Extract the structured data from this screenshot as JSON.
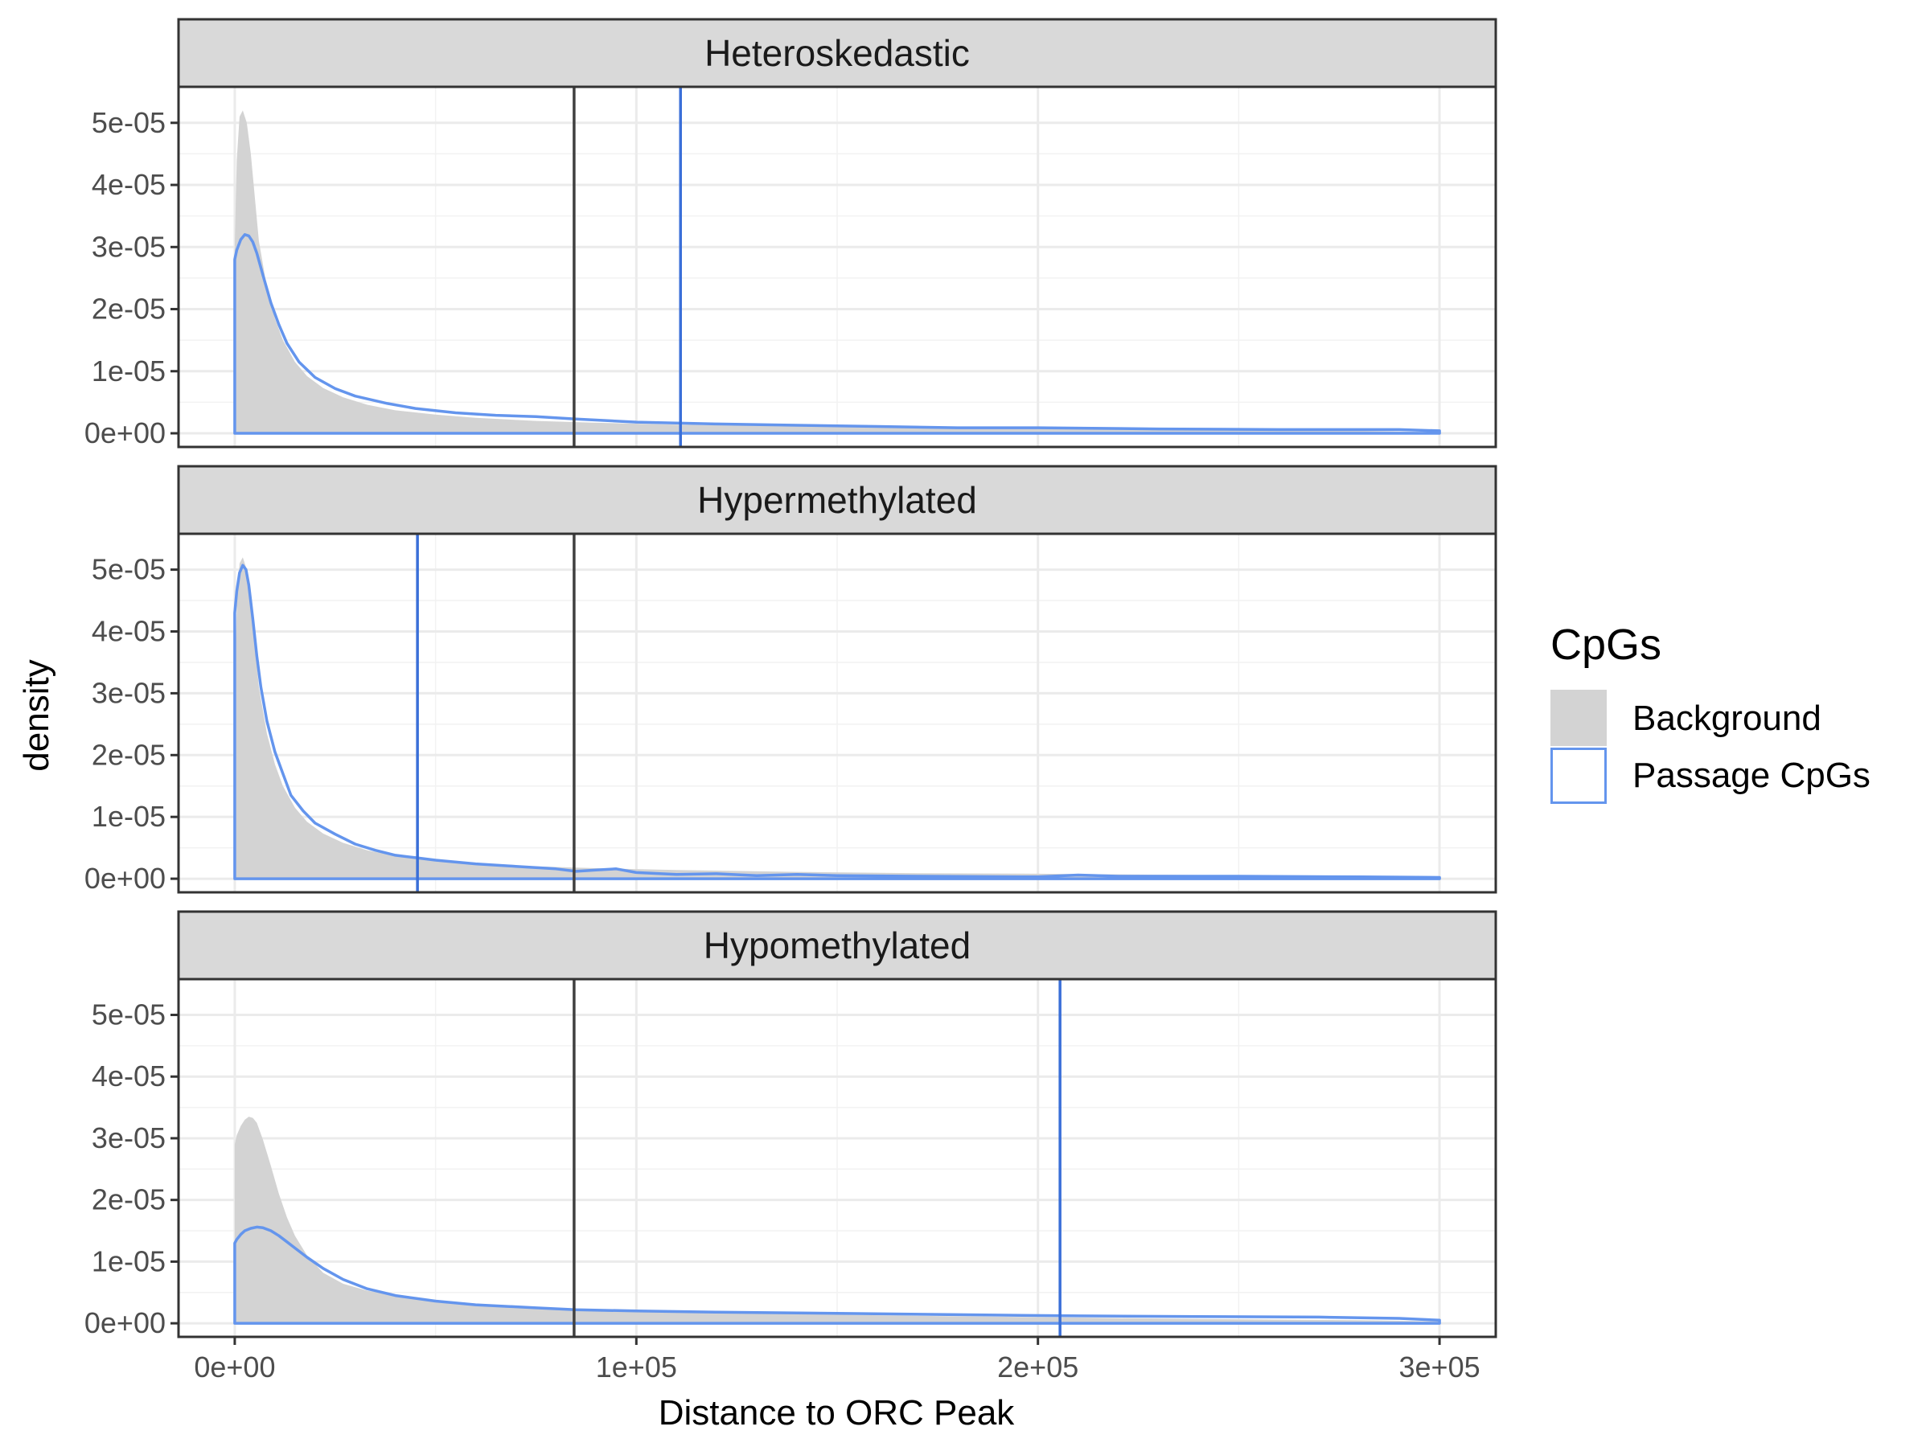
{
  "chart_data": {
    "type": "area",
    "xlabel": "Distance to ORC Peak",
    "ylabel": "density",
    "xlim": [
      -14000,
      314000
    ],
    "ylim": [
      -2.2e-06,
      5.58e-05
    ],
    "x_ticks": [
      0,
      100000,
      200000,
      300000
    ],
    "x_tick_labels": [
      "0e+00",
      "1e+05",
      "2e+05",
      "3e+05"
    ],
    "y_ticks": [
      0,
      1e-05,
      2e-05,
      3e-05,
      4e-05,
      5e-05
    ],
    "y_tick_labels": [
      "0e+00",
      "1e-05",
      "2e-05",
      "3e-05",
      "4e-05",
      "5e-05"
    ],
    "grid": true,
    "legend": {
      "title": "CpGs",
      "position": "right",
      "entries": [
        {
          "label": "Background",
          "kind": "fill",
          "color": "#d3d3d3"
        },
        {
          "label": "Passage CpGs",
          "kind": "line",
          "color": "#6495ed"
        }
      ]
    },
    "colors": {
      "background_fill": "#d3d3d3",
      "passage_line": "#6495ed",
      "passage_vline": "#3a6fd8",
      "background_vline": "#404040",
      "strip_fill": "#d9d9d9"
    },
    "panels": [
      {
        "label": "Heteroskedastic",
        "background_median": 84500,
        "passage_median": 111000,
        "series": [
          {
            "name": "Background",
            "kind": "fill",
            "x": [
              0,
              500,
              1200,
              2000,
              3000,
              4000,
              5000,
              6000,
              8000,
              10000,
              12000,
              15000,
              18000,
              22000,
              27000,
              33000,
              40000,
              50000,
              60000,
              75000,
              90000,
              110000,
              140000,
              170000,
              200000,
              240000,
              280000,
              300000
            ],
            "y": [
              3e-05,
              4.4e-05,
              5.1e-05,
              5.2e-05,
              5e-05,
              4.5e-05,
              3.8e-05,
              3.1e-05,
              2.35e-05,
              1.85e-05,
              1.5e-05,
              1.15e-05,
              9.2e-06,
              7.3e-06,
              5.8e-06,
              4.6e-06,
              3.7e-06,
              3e-06,
              2.5e-06,
              2e-06,
              1.7e-06,
              1.4e-06,
              1.1e-06,
              9e-07,
              8e-07,
              6e-07,
              4e-07,
              2e-07
            ]
          },
          {
            "name": "Passage CpGs",
            "kind": "line",
            "x": [
              0,
              500,
              1500,
              2500,
              3500,
              4500,
              5500,
              7000,
              9000,
              11000,
              13000,
              16000,
              20000,
              25000,
              30000,
              38000,
              45000,
              55000,
              65000,
              75000,
              85000,
              100000,
              120000,
              140000,
              160000,
              180000,
              200000,
              230000,
              260000,
              290000,
              300000
            ],
            "y": [
              2.8e-05,
              2.95e-05,
              3.12e-05,
              3.2e-05,
              3.18e-05,
              3.08e-05,
              2.9e-05,
              2.55e-05,
              2.1e-05,
              1.75e-05,
              1.45e-05,
              1.15e-05,
              9e-06,
              7.2e-06,
              6e-06,
              4.8e-06,
              4e-06,
              3.3e-06,
              2.9e-06,
              2.7e-06,
              2.3e-06,
              1.8e-06,
              1.5e-06,
              1.3e-06,
              1.1e-06,
              9e-07,
              9e-07,
              7e-07,
              6e-07,
              6e-07,
              4e-07
            ]
          }
        ]
      },
      {
        "label": "Hypermethylated",
        "background_median": 84500,
        "passage_median": 45500,
        "series": [
          {
            "name": "Background",
            "kind": "fill",
            "x": [
              0,
              500,
              1200,
              2000,
              3000,
              4000,
              5000,
              6000,
              8000,
              10000,
              12000,
              15000,
              18000,
              22000,
              27000,
              33000,
              40000,
              50000,
              60000,
              75000,
              90000,
              110000,
              140000,
              170000,
              200000,
              240000,
              280000,
              300000
            ],
            "y": [
              3e-05,
              4.4e-05,
              5.1e-05,
              5.2e-05,
              5e-05,
              4.5e-05,
              3.8e-05,
              3.1e-05,
              2.35e-05,
              1.85e-05,
              1.5e-05,
              1.15e-05,
              9.2e-06,
              7.3e-06,
              5.8e-06,
              4.6e-06,
              3.7e-06,
              3e-06,
              2.5e-06,
              2e-06,
              1.7e-06,
              1.4e-06,
              1.1e-06,
              9e-07,
              8e-07,
              6e-07,
              4e-07,
              2e-07
            ]
          },
          {
            "name": "Passage CpGs",
            "kind": "line",
            "x": [
              0,
              500,
              1200,
              2000,
              2800,
              3500,
              4500,
              5500,
              6500,
              8000,
              10000,
              12000,
              14000,
              17000,
              20000,
              25000,
              30000,
              35000,
              40000,
              45000,
              50000,
              60000,
              70000,
              80000,
              85000,
              90000,
              95000,
              100000,
              110000,
              120000,
              130000,
              140000,
              150000,
              170000,
              200000,
              210000,
              220000,
              250000,
              280000,
              300000
            ],
            "y": [
              4.3e-05,
              4.65e-05,
              4.95e-05,
              5.07e-05,
              5e-05,
              4.75e-05,
              4.2e-05,
              3.6e-05,
              3.1e-05,
              2.55e-05,
              2.05e-05,
              1.7e-05,
              1.35e-05,
              1.1e-05,
              9e-06,
              7.2e-06,
              5.6e-06,
              4.6e-06,
              3.8e-06,
              3.4e-06,
              3e-06,
              2.4e-06,
              2e-06,
              1.6e-06,
              1.2e-06,
              1.4e-06,
              1.6e-06,
              1e-06,
              7e-07,
              8e-07,
              5e-07,
              7e-07,
              5e-07,
              4e-07,
              3e-07,
              6e-07,
              4e-07,
              4e-07,
              3e-07,
              2e-07
            ]
          }
        ]
      },
      {
        "label": "Hypomethylated",
        "background_median": 84500,
        "passage_median": 205500,
        "series": [
          {
            "name": "Background",
            "kind": "fill",
            "x": [
              0,
              500,
              1500,
              2500,
              3500,
              4500,
              5500,
              7000,
              9000,
              11000,
              13000,
              15000,
              18000,
              22000,
              27000,
              33000,
              40000,
              50000,
              60000,
              75000,
              90000,
              110000,
              140000,
              170000,
              200000,
              240000,
              280000,
              300000
            ],
            "y": [
              2.9e-05,
              3.05e-05,
              3.2e-05,
              3.3e-05,
              3.35e-05,
              3.33e-05,
              3.25e-05,
              2.98e-05,
              2.55e-05,
              2.1e-05,
              1.72e-05,
              1.42e-05,
              1.1e-05,
              8.2e-06,
              6.4e-06,
              5.3e-06,
              4.5e-06,
              3.8e-06,
              3.2e-06,
              2.6e-06,
              2.2e-06,
              1.9e-06,
              1.5e-06,
              1.2e-06,
              1e-06,
              7e-07,
              5e-07,
              3e-07
            ]
          },
          {
            "name": "Passage CpGs",
            "kind": "line",
            "x": [
              0,
              500,
              1500,
              2500,
              4000,
              5500,
              7000,
              9000,
              11000,
              13000,
              15000,
              18000,
              22000,
              27000,
              33000,
              40000,
              50000,
              60000,
              75000,
              85000,
              100000,
              120000,
              150000,
              180000,
              210000,
              240000,
              270000,
              290000,
              300000
            ],
            "y": [
              1.3e-05,
              1.36e-05,
              1.44e-05,
              1.5e-05,
              1.54e-05,
              1.56e-05,
              1.55e-05,
              1.5e-05,
              1.42e-05,
              1.32e-05,
              1.22e-05,
              1.07e-05,
              8.9e-06,
              7.1e-06,
              5.6e-06,
              4.5e-06,
              3.6e-06,
              3e-06,
              2.5e-06,
              2.2e-06,
              2e-06,
              1.8e-06,
              1.6e-06,
              1.4e-06,
              1.2e-06,
              1.1e-06,
              1e-06,
              8e-07,
              5e-07
            ]
          }
        ]
      }
    ]
  }
}
